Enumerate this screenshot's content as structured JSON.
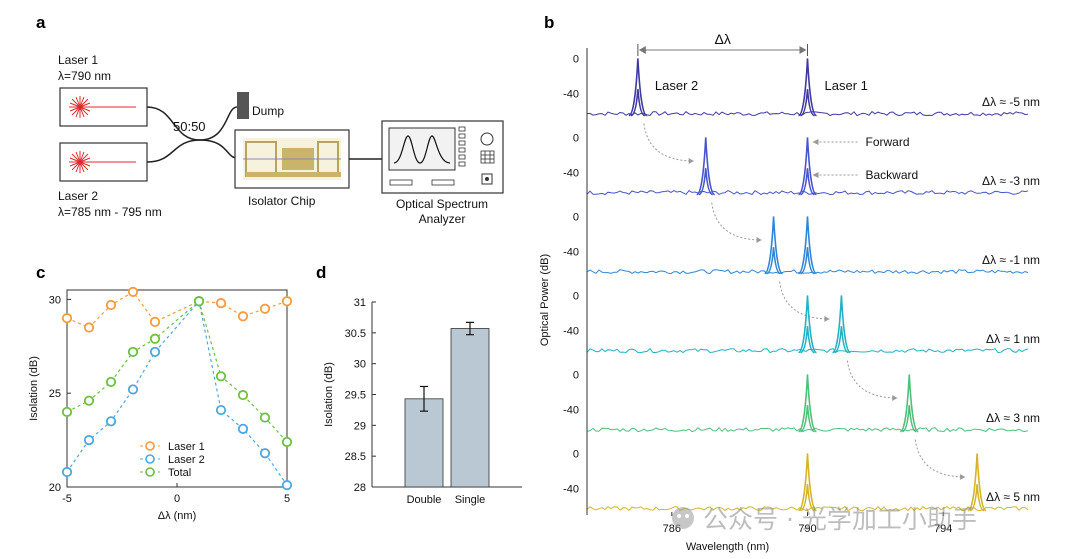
{
  "panel_letters": {
    "a": "a",
    "b": "b",
    "c": "c",
    "d": "d"
  },
  "diagram": {
    "laser1_name": "Laser 1",
    "laser1_wavelength": "λ=790 nm",
    "laser2_name": "Laser 2",
    "laser2_wavelength": "λ=785 nm - 795 nm",
    "splitter": "50:50",
    "dump": "Dump",
    "chip": "Isolator Chip",
    "osa_line1": "Optical Spectrum",
    "osa_line2": "Analyzer"
  },
  "watermark": "公众号 · 光学加工小助手",
  "colors": {
    "laser1": "#f39c3c",
    "laser2": "#4aa8e0",
    "total": "#6cbf3f",
    "bar": "#b9c8d3"
  },
  "chart_data": [
    {
      "type": "line",
      "panel": "c",
      "xlabel": "Δλ (nm)",
      "ylabel": "Isolation (dB)",
      "xlim": [
        -5,
        5
      ],
      "ylim": [
        20,
        30.5
      ],
      "xticks": [
        "-5",
        "0",
        "5"
      ],
      "yticks": [
        "20",
        "25",
        "30"
      ],
      "legend_position": "bottom",
      "series": [
        {
          "name": "Laser 1",
          "color": "#f39c3c",
          "x": [
            -5,
            -4,
            -3,
            -2,
            -1,
            1,
            2,
            3,
            4,
            5
          ],
          "y": [
            29.0,
            28.5,
            29.7,
            30.4,
            28.8,
            29.9,
            29.8,
            29.1,
            29.5,
            29.9
          ]
        },
        {
          "name": "Laser 2",
          "color": "#4aa8e0",
          "x": [
            -5,
            -4,
            -3,
            -2,
            -1,
            1,
            2,
            3,
            4,
            5
          ],
          "y": [
            20.8,
            22.5,
            23.5,
            25.2,
            27.2,
            29.9,
            24.1,
            23.1,
            21.8,
            20.1
          ]
        },
        {
          "name": "Total",
          "color": "#6cbf3f",
          "x": [
            -5,
            -4,
            -3,
            -2,
            -1,
            1,
            2,
            3,
            4,
            5
          ],
          "y": [
            24.0,
            24.6,
            25.6,
            27.2,
            27.9,
            29.9,
            25.9,
            24.9,
            23.7,
            22.4
          ]
        }
      ]
    },
    {
      "type": "bar",
      "panel": "d",
      "xlabel": "",
      "ylabel": "Isolation (dB)",
      "ylim": [
        28,
        31
      ],
      "yticks": [
        "28",
        "28.5",
        "29",
        "29.5",
        "30",
        "30.5",
        "31"
      ],
      "categories": [
        "Double",
        "Single"
      ],
      "values": [
        29.43,
        30.57
      ],
      "errors": [
        0.2,
        0.1
      ]
    },
    {
      "type": "line",
      "panel": "b",
      "xlabel": "Wavelength (nm)",
      "ylabel": "Optical Power (dB)",
      "xlim": [
        783.5,
        796.5
      ],
      "ylim": [
        -70,
        5
      ],
      "xticks": [
        "786",
        "790",
        "794"
      ],
      "yticks": [
        "0",
        "-40"
      ],
      "annotations": {
        "delta": "Δλ",
        "laser2": "Laser 2",
        "laser1": "Laser 1",
        "forward": "Forward",
        "backward": "Backward"
      },
      "series": [
        {
          "name": "Δλ ≈ -5 nm",
          "color": "#3f3aa3",
          "laser1_nm": 790,
          "laser2_nm": 785
        },
        {
          "name": "Δλ ≈ -3 nm",
          "color": "#4755cc",
          "laser1_nm": 790,
          "laser2_nm": 787
        },
        {
          "name": "Δλ ≈ -1 nm",
          "color": "#2f86d6",
          "laser1_nm": 790,
          "laser2_nm": 789
        },
        {
          "name": "Δλ ≈ 1 nm",
          "color": "#1fb3c4",
          "laser1_nm": 790,
          "laser2_nm": 791
        },
        {
          "name": "Δλ ≈ 3 nm",
          "color": "#4cc07c",
          "laser1_nm": 790,
          "laser2_nm": 793
        },
        {
          "name": "Δλ ≈ 5 nm",
          "color": "#d4b52a",
          "laser1_nm": 790,
          "laser2_nm": 795
        }
      ],
      "peak_forward_db": 0,
      "peak_backward_db": -35,
      "noise_floor_db": -65
    }
  ]
}
